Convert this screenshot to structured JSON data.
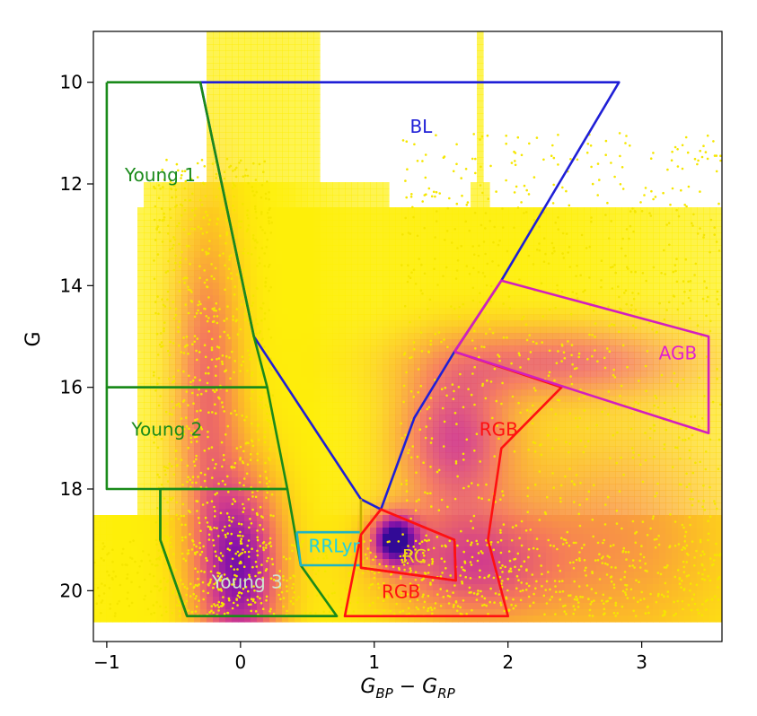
{
  "chart_data": {
    "type": "scatter",
    "title": "",
    "xlabel": "G_BP − G_RP",
    "xlabel_parts": {
      "main": "G",
      "sub1": "BP",
      "minus": " − ",
      "main2": "G",
      "sub2": "RP"
    },
    "ylabel": "G",
    "xlim": [
      -1.1,
      3.6
    ],
    "ylim": [
      21.0,
      9.0
    ],
    "y_inverted": true,
    "xticks": [
      -1,
      0,
      1,
      2,
      3
    ],
    "yticks": [
      10,
      12,
      14,
      16,
      18,
      20
    ],
    "density_colormap": "plasma",
    "density_blobs": [
      {
        "x": 1.15,
        "y": 19.0,
        "sx": 0.12,
        "sy": 0.35,
        "level": 1.0
      },
      {
        "x": 0.0,
        "y": 19.6,
        "sx": 0.22,
        "sy": 1.3,
        "level": 0.85
      },
      {
        "x": -0.25,
        "y": 16.0,
        "sx": 0.18,
        "sy": 2.2,
        "level": 0.45
      },
      {
        "x": 1.6,
        "y": 17.0,
        "sx": 0.3,
        "sy": 1.0,
        "level": 0.6
      },
      {
        "x": 2.4,
        "y": 15.5,
        "sx": 0.7,
        "sy": 0.5,
        "level": 0.45
      },
      {
        "x": 1.7,
        "y": 19.5,
        "sx": 0.45,
        "sy": 0.8,
        "level": 0.55
      },
      {
        "x": 2.8,
        "y": 19.0,
        "sx": 0.6,
        "sy": 1.5,
        "level": 0.3
      }
    ],
    "regions": [
      {
        "name": "BL",
        "label": "BL",
        "color": "#1f1fd6",
        "label_color": "#1f1fd6",
        "label_pos": [
          1.35,
          10.9
        ],
        "polygon": [
          [
            -0.3,
            10.0
          ],
          [
            2.83,
            10.0
          ],
          [
            1.95,
            13.9
          ],
          [
            1.6,
            15.3
          ],
          [
            1.3,
            16.6
          ],
          [
            1.05,
            18.4
          ],
          [
            0.9,
            18.2
          ],
          [
            0.1,
            15.0
          ],
          [
            -0.3,
            10.0
          ]
        ]
      },
      {
        "name": "Young 1",
        "label": "Young 1",
        "color": "#1a8a1a",
        "label_color": "#1a8a1a",
        "label_pos": [
          -0.6,
          11.85
        ],
        "polygon": [
          [
            -1.0,
            10.0
          ],
          [
            -0.3,
            10.0
          ],
          [
            0.1,
            15.0
          ],
          [
            0.2,
            16.0
          ],
          [
            -1.0,
            16.0
          ],
          [
            -1.0,
            10.0
          ]
        ]
      },
      {
        "name": "Young 2",
        "label": "Young 2",
        "color": "#1a8a1a",
        "label_color": "#1a8a1a",
        "label_pos": [
          -0.55,
          16.85
        ],
        "polygon": [
          [
            -1.0,
            16.0
          ],
          [
            0.2,
            16.0
          ],
          [
            0.35,
            18.0
          ],
          [
            -1.0,
            18.0
          ],
          [
            -1.0,
            16.0
          ]
        ]
      },
      {
        "name": "Young 3",
        "label": "Young 3",
        "color": "#1a8a1a",
        "label_color": "#cfe8cf",
        "label_pos": [
          0.05,
          19.85
        ],
        "polygon": [
          [
            -0.6,
            18.0
          ],
          [
            0.35,
            18.0
          ],
          [
            0.45,
            19.5
          ],
          [
            0.72,
            20.5
          ],
          [
            -0.4,
            20.5
          ],
          [
            -0.6,
            19.0
          ],
          [
            -0.6,
            18.0
          ]
        ]
      },
      {
        "name": "RRLyr",
        "label": "RRLyr",
        "color": "#1fb4c4",
        "label_color": "#1fd0e0",
        "label_pos": [
          0.7,
          19.15
        ],
        "polygon": [
          [
            0.42,
            18.85
          ],
          [
            0.9,
            18.85
          ],
          [
            0.9,
            19.5
          ],
          [
            0.45,
            19.5
          ],
          [
            0.42,
            18.85
          ]
        ]
      },
      {
        "name": "RRLyr-edge",
        "label": "",
        "color": "#c8b000",
        "label_color": "#c8b000",
        "label_pos": [
          0.9,
          18.2
        ],
        "polygon": [
          [
            0.9,
            18.2
          ],
          [
            0.9,
            19.55
          ]
        ]
      },
      {
        "name": "RC",
        "label": "RC",
        "color": "#ff1010",
        "label_color": "#f0d020",
        "label_pos": [
          1.3,
          19.35
        ],
        "polygon": [
          [
            0.9,
            18.9
          ],
          [
            1.05,
            18.4
          ],
          [
            1.6,
            19.0
          ],
          [
            1.61,
            19.8
          ],
          [
            0.9,
            19.55
          ],
          [
            0.9,
            18.9
          ]
        ]
      },
      {
        "name": "RGB-lower",
        "label": "RGB",
        "color": "#ff1010",
        "label_color": "#ff1010",
        "label_pos": [
          1.2,
          20.05
        ],
        "polygon": [
          [
            0.9,
            19.55
          ],
          [
            1.61,
            19.8
          ],
          [
            1.6,
            19.0
          ],
          [
            1.05,
            18.4
          ],
          [
            0.9,
            18.9
          ],
          [
            0.78,
            20.5
          ],
          [
            2.0,
            20.5
          ],
          [
            1.85,
            19.0
          ],
          [
            1.95,
            17.2
          ],
          [
            2.4,
            16.0
          ],
          [
            1.6,
            15.3
          ]
        ]
      },
      {
        "name": "RGB",
        "label": "RGB",
        "color": "#ff1010",
        "label_color": "#ff1010",
        "label_pos": [
          1.93,
          16.85
        ],
        "polygon": []
      },
      {
        "name": "AGB",
        "label": "AGB",
        "color": "#d21fbe",
        "label_color": "#e020d0",
        "label_pos": [
          3.27,
          15.35
        ],
        "polygon": [
          [
            1.6,
            15.3
          ],
          [
            1.95,
            13.9
          ],
          [
            3.5,
            15.0
          ],
          [
            3.5,
            16.9
          ],
          [
            1.6,
            15.3
          ]
        ]
      }
    ],
    "edge_lines": [
      {
        "name": "young3-left",
        "color": "#1a8a1a",
        "points": [
          [
            -0.6,
            18.0
          ],
          [
            -0.6,
            19.0
          ],
          [
            -0.4,
            20.5
          ]
        ]
      },
      {
        "name": "bottom-edge",
        "color": "#1a8a1a",
        "points": [
          [
            -0.4,
            20.5
          ],
          [
            0.72,
            20.5
          ]
        ]
      }
    ]
  }
}
